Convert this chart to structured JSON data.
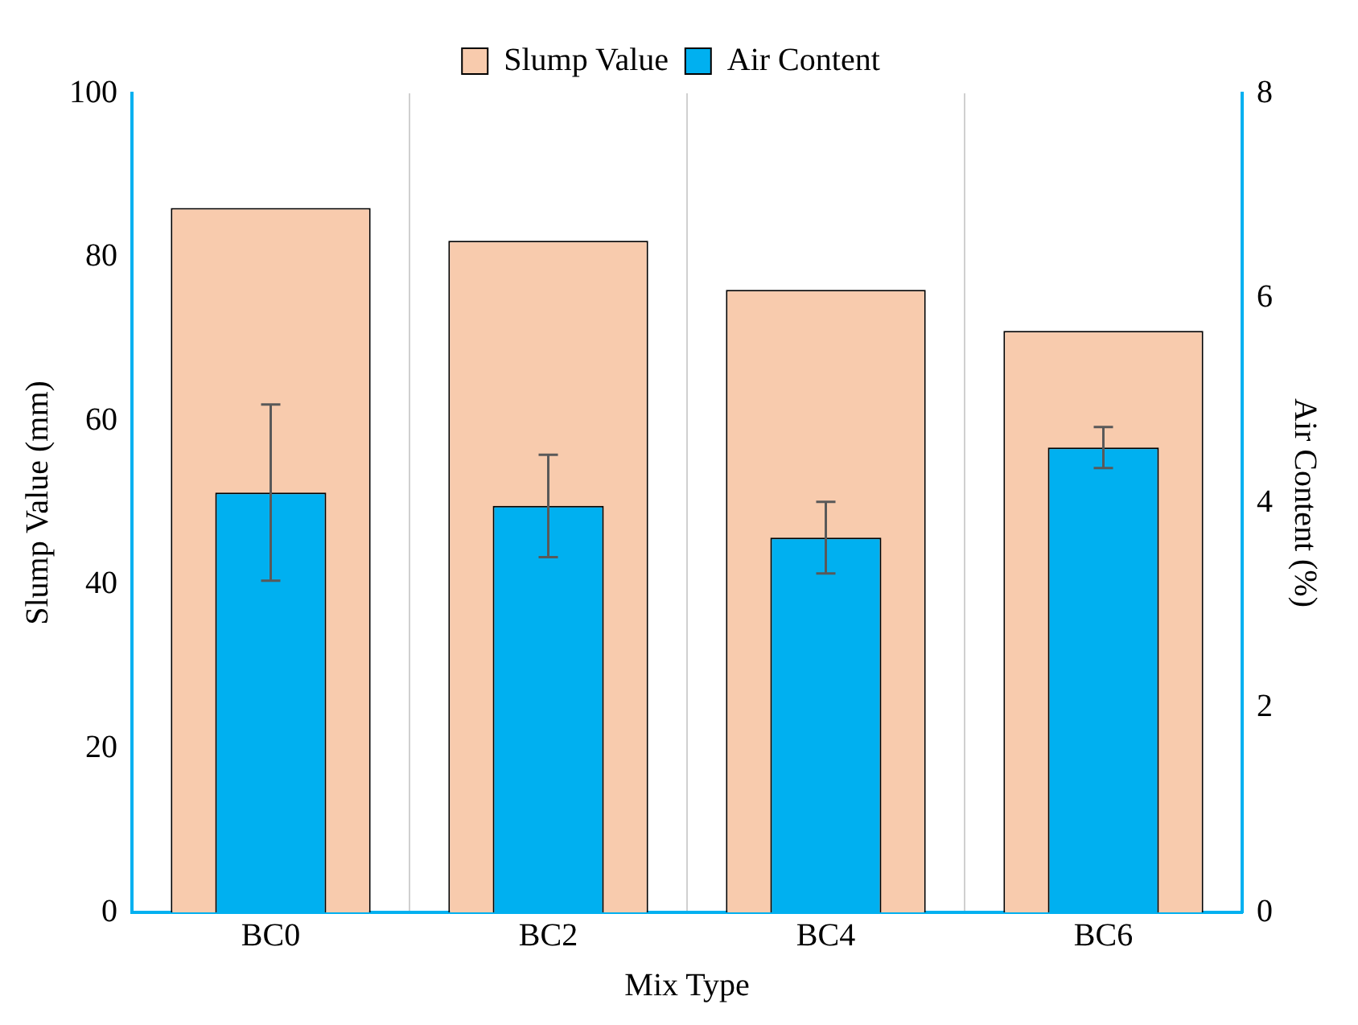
{
  "chart_data": {
    "type": "bar",
    "xlabel": "Mix Type",
    "ylabel": "Slump Value (mm)",
    "y2label": "Air Content (%)",
    "categories": [
      "BC0",
      "BC2",
      "BC4",
      "BC6"
    ],
    "series": [
      {
        "name": "Slump Value",
        "color": "#f8cbad",
        "values": [
          86,
          82,
          76,
          71
        ]
      },
      {
        "name": "Air Content",
        "color": "#00b0f0",
        "values": [
          4.1,
          3.97,
          3.66,
          4.54
        ],
        "axis": "y2",
        "errors": [
          0.86,
          0.5,
          0.35,
          0.2
        ]
      }
    ],
    "ylim": [
      0,
      100
    ],
    "yticks": [
      0,
      20,
      40,
      60,
      80,
      100
    ],
    "y2lim": [
      0,
      8
    ],
    "y2ticks": [
      0,
      2,
      4,
      6,
      8
    ],
    "grid": "x",
    "legend": "top"
  }
}
